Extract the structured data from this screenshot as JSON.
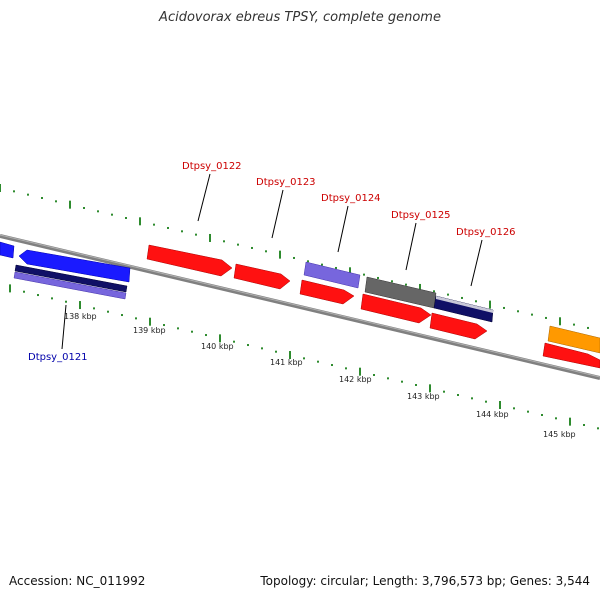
{
  "title": "Acidovorax ebreus TPSY, complete genome",
  "footer": {
    "accession": "Accession: NC_011992",
    "summary": "Topology: circular; Length: 3,796,573 bp; Genes: 3,544"
  },
  "colors": {
    "backbone": "#808080",
    "dots": "#2e8b2e",
    "label_red": "#cc0000",
    "label_blue": "#0000aa",
    "blue": "#1a1aff",
    "red": "#ff1111",
    "purple": "#7766dd",
    "navy": "#101066",
    "gray": "#666666",
    "orange": "#ff9900"
  },
  "scale": {
    "ticks": [
      "138 kbp",
      "139 kbp",
      "140 kbp",
      "141 kbp",
      "142 kbp",
      "143 kbp",
      "144 kbp",
      "145 kbp"
    ]
  },
  "genes": [
    {
      "id": "g_left_blue",
      "color": "blue",
      "strand": "-",
      "label": ""
    },
    {
      "id": "g_blue_big",
      "color": "blue",
      "strand": "-",
      "label": ""
    },
    {
      "id": "g_navy_0121",
      "color": "navy",
      "strand": "0",
      "label": ""
    },
    {
      "id": "g_purple_0121",
      "color": "purple",
      "strand": "0",
      "label": "Dtpsy_0121"
    },
    {
      "id": "g_red_0122",
      "color": "red",
      "strand": "+",
      "label": "Dtpsy_0122"
    },
    {
      "id": "g_red_0123",
      "color": "red",
      "strand": "+",
      "label": "Dtpsy_0123"
    },
    {
      "id": "g_purple_0124",
      "color": "purple",
      "strand": "0",
      "label": "Dtpsy_0124"
    },
    {
      "id": "g_red_a",
      "color": "red",
      "strand": "+",
      "label": ""
    },
    {
      "id": "g_gray_0125",
      "color": "gray",
      "strand": "0",
      "label": "Dtpsy_0125"
    },
    {
      "id": "g_red_b",
      "color": "red",
      "strand": "+",
      "label": ""
    },
    {
      "id": "g_navy_0126",
      "color": "navy",
      "strand": "0",
      "label": "Dtpsy_0126"
    },
    {
      "id": "g_red_c",
      "color": "red",
      "strand": "+",
      "label": ""
    },
    {
      "id": "g_orange",
      "color": "orange",
      "strand": "0",
      "label": ""
    },
    {
      "id": "g_red_d",
      "color": "red",
      "strand": "+",
      "label": ""
    }
  ]
}
